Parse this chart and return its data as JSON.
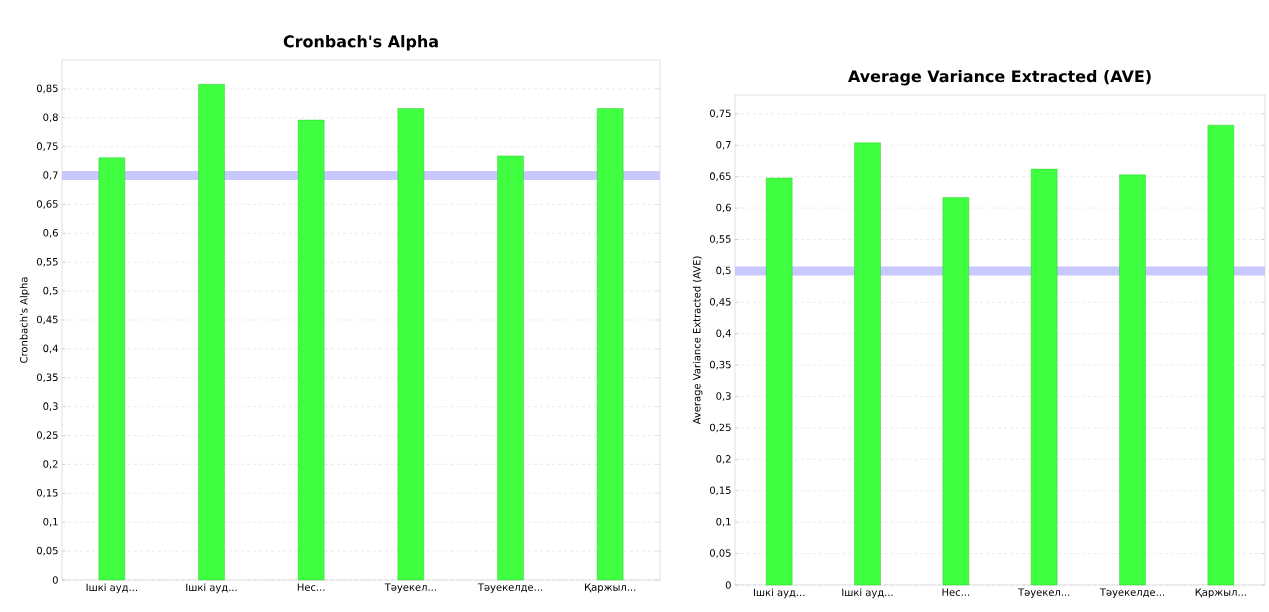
{
  "chart_data": [
    {
      "type": "bar",
      "title": "Cronbach's Alpha",
      "ylabel": "Cronbach's Alpha",
      "categories": [
        "Ішкі ауд...",
        "Ішкі ауд...",
        "Нес...",
        "Тәуекел...",
        "Тәуекелде...",
        "Қаржыл..."
      ],
      "values": [
        0.731,
        0.858,
        0.796,
        0.816,
        0.734,
        0.816
      ],
      "color": "#40ff40",
      "ylim": [
        0,
        0.9
      ],
      "yticks": [
        0,
        {
          "value": 0.05,
          "label": "0,05"
        },
        {
          "value": 0.1,
          "label": "0,1"
        },
        {
          "value": 0.15,
          "label": "0,15"
        },
        {
          "value": 0.2,
          "label": "0,2"
        },
        {
          "value": 0.25,
          "label": "0,25"
        },
        {
          "value": 0.3,
          "label": "0,3"
        },
        {
          "value": 0.35,
          "label": "0,35"
        },
        {
          "value": 0.4,
          "label": "0,4"
        },
        {
          "value": 0.45,
          "label": "0,45"
        },
        {
          "value": 0.5,
          "label": "0,5"
        },
        {
          "value": 0.55,
          "label": "0,55"
        },
        {
          "value": 0.6,
          "label": "0,6"
        },
        {
          "value": 0.65,
          "label": "0,65"
        },
        {
          "value": 0.7,
          "label": "0,7"
        },
        {
          "value": 0.75,
          "label": "0,75"
        },
        {
          "value": 0.8,
          "label": "0,8"
        },
        {
          "value": 0.85,
          "label": "0,85"
        }
      ],
      "ref_lines": [
        {
          "axis": "y",
          "value": 0.7,
          "color": "#c8c8ff"
        }
      ],
      "grid": "y"
    },
    {
      "type": "bar",
      "title": "Average Variance Extracted (AVE)",
      "ylabel": "Average Variance Extracted (AVE)",
      "categories": [
        "Ішкі ауд...",
        "Ішкі ауд...",
        "Нес...",
        "Тәуекел...",
        "Тәуекелде...",
        "Қаржыл..."
      ],
      "values": [
        0.648,
        0.704,
        0.617,
        0.662,
        0.653,
        0.732
      ],
      "color": "#40ff40",
      "ylim": [
        0,
        0.78
      ],
      "yticks": [
        0,
        {
          "value": 0.05,
          "label": "0,05"
        },
        {
          "value": 0.1,
          "label": "0,1"
        },
        {
          "value": 0.15,
          "label": "0,15"
        },
        {
          "value": 0.2,
          "label": "0,2"
        },
        {
          "value": 0.25,
          "label": "0,25"
        },
        {
          "value": 0.3,
          "label": "0,3"
        },
        {
          "value": 0.35,
          "label": "0,35"
        },
        {
          "value": 0.4,
          "label": "0,4"
        },
        {
          "value": 0.45,
          "label": "0,45"
        },
        {
          "value": 0.5,
          "label": "0,5"
        },
        {
          "value": 0.55,
          "label": "0,55"
        },
        {
          "value": 0.6,
          "label": "0,6"
        },
        {
          "value": 0.65,
          "label": "0,65"
        },
        {
          "value": 0.7,
          "label": "0,7"
        },
        {
          "value": 0.75,
          "label": "0,75"
        }
      ],
      "ref_lines": [
        {
          "axis": "y",
          "value": 0.5,
          "color": "#c8c8ff"
        }
      ],
      "grid": "y"
    }
  ]
}
